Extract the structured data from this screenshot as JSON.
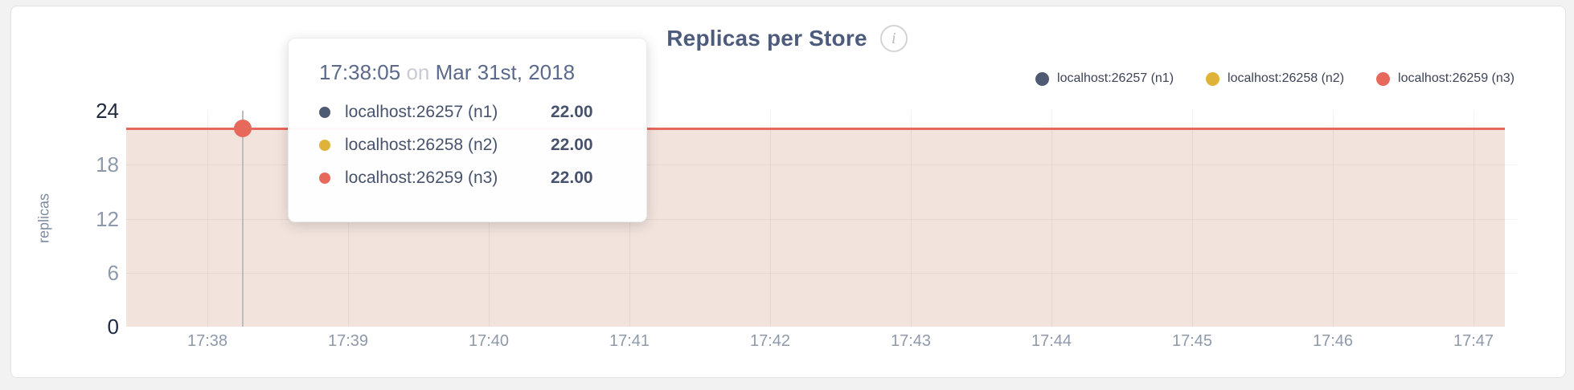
{
  "page_background": "#f2f2f3",
  "card": {
    "background": "#ffffff",
    "border_color": "#e2e2e4"
  },
  "header": {
    "title": "Replicas per Store",
    "info_icon_glyph": "i"
  },
  "legend": {
    "items": [
      {
        "label": "localhost:26257 (n1)",
        "color": "#4e5b73"
      },
      {
        "label": "localhost:26258 (n2)",
        "color": "#dfb33a"
      },
      {
        "label": "localhost:26259 (n3)",
        "color": "#e7695c"
      }
    ]
  },
  "tooltip": {
    "time": "17:38:05",
    "conjunction": "on",
    "date": "Mar 31st, 2018",
    "rows": [
      {
        "label": "localhost:26257 (n1)",
        "value": "22.00",
        "color": "#4e5b73"
      },
      {
        "label": "localhost:26258 (n2)",
        "value": "22.00",
        "color": "#dfb33a"
      },
      {
        "label": "localhost:26259 (n3)",
        "value": "22.00",
        "color": "#e7695c"
      }
    ]
  },
  "chart_data": {
    "type": "area",
    "title": "Replicas per Store",
    "ylabel": "replicas",
    "xlabel": "",
    "x": [
      "17:38",
      "17:39",
      "17:40",
      "17:41",
      "17:42",
      "17:43",
      "17:44",
      "17:45",
      "17:46",
      "17:47"
    ],
    "yticks": [
      0,
      6,
      12,
      18,
      24
    ],
    "ylim": [
      0,
      24
    ],
    "grid": true,
    "legend_position": "top-right",
    "fill_color": "#f2e3dd",
    "crosshair_color": "#bcbcbc",
    "series": [
      {
        "name": "localhost:26257 (n1)",
        "color": "#4e5b73",
        "values": [
          22,
          22,
          22,
          22,
          22,
          22,
          22,
          22,
          22,
          22
        ]
      },
      {
        "name": "localhost:26258 (n2)",
        "color": "#dfb33a",
        "values": [
          22,
          22,
          22,
          22,
          22,
          22,
          22,
          22,
          22,
          22
        ]
      },
      {
        "name": "localhost:26259 (n3)",
        "color": "#e7695c",
        "values": [
          22,
          22,
          22,
          22,
          22,
          22,
          22,
          22,
          22,
          22
        ]
      }
    ],
    "hover_point": {
      "time": "17:38:05",
      "date": "Mar 31st, 2018",
      "value": 22
    }
  }
}
